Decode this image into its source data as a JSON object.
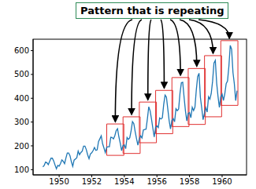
{
  "chart_data": {
    "type": "line",
    "annotations": [
      "Pattern that is repeating"
    ],
    "color": "#1f77b4",
    "grid": false,
    "x": [
      1949,
      1949.083,
      1949.167,
      1949.25,
      1949.333,
      1949.417,
      1949.5,
      1949.583,
      1949.667,
      1949.75,
      1949.833,
      1949.917,
      1950,
      1950.083,
      1950.167,
      1950.25,
      1950.333,
      1950.417,
      1950.5,
      1950.583,
      1950.667,
      1950.75,
      1950.833,
      1950.917,
      1951,
      1951.083,
      1951.167,
      1951.25,
      1951.333,
      1951.417,
      1951.5,
      1951.583,
      1951.667,
      1951.75,
      1951.833,
      1951.917,
      1952,
      1952.083,
      1952.167,
      1952.25,
      1952.333,
      1952.417,
      1952.5,
      1952.583,
      1952.667,
      1952.75,
      1952.833,
      1952.917,
      1953,
      1953.083,
      1953.167,
      1953.25,
      1953.333,
      1953.417,
      1953.5,
      1953.583,
      1953.667,
      1953.75,
      1953.833,
      1953.917,
      1954,
      1954.083,
      1954.167,
      1954.25,
      1954.333,
      1954.417,
      1954.5,
      1954.583,
      1954.667,
      1954.75,
      1954.833,
      1954.917,
      1955,
      1955.083,
      1955.167,
      1955.25,
      1955.333,
      1955.417,
      1955.5,
      1955.583,
      1955.667,
      1955.75,
      1955.833,
      1955.917,
      1956,
      1956.083,
      1956.167,
      1956.25,
      1956.333,
      1956.417,
      1956.5,
      1956.583,
      1956.667,
      1956.75,
      1956.833,
      1956.917,
      1957,
      1957.083,
      1957.167,
      1957.25,
      1957.333,
      1957.417,
      1957.5,
      1957.583,
      1957.667,
      1957.75,
      1957.833,
      1957.917,
      1958,
      1958.083,
      1958.167,
      1958.25,
      1958.333,
      1958.417,
      1958.5,
      1958.583,
      1958.667,
      1958.75,
      1958.833,
      1958.917,
      1959,
      1959.083,
      1959.167,
      1959.25,
      1959.333,
      1959.417,
      1959.5,
      1959.583,
      1959.667,
      1959.75,
      1959.833,
      1959.917,
      1960,
      1960.083,
      1960.167,
      1960.25,
      1960.333,
      1960.417,
      1960.5,
      1960.583,
      1960.667,
      1960.75,
      1960.833,
      1960.917
    ],
    "values": [
      112,
      118,
      132,
      129,
      121,
      135,
      148,
      148,
      136,
      119,
      104,
      118,
      115,
      126,
      141,
      135,
      125,
      149,
      170,
      170,
      158,
      133,
      114,
      140,
      145,
      150,
      178,
      163,
      172,
      178,
      199,
      199,
      184,
      162,
      146,
      166,
      171,
      180,
      193,
      181,
      183,
      218,
      230,
      242,
      209,
      191,
      172,
      194,
      196,
      196,
      236,
      235,
      229,
      243,
      264,
      272,
      237,
      211,
      180,
      201,
      204,
      188,
      235,
      227,
      234,
      264,
      302,
      293,
      259,
      229,
      203,
      229,
      242,
      233,
      267,
      269,
      270,
      315,
      364,
      347,
      312,
      274,
      237,
      278,
      284,
      277,
      317,
      313,
      318,
      374,
      413,
      405,
      355,
      306,
      271,
      306,
      315,
      301,
      356,
      348,
      355,
      422,
      465,
      467,
      404,
      347,
      305,
      336,
      340,
      318,
      362,
      348,
      363,
      435,
      491,
      505,
      404,
      359,
      310,
      337,
      360,
      342,
      406,
      396,
      420,
      472,
      548,
      559,
      463,
      407,
      362,
      405,
      417,
      391,
      419,
      461,
      472,
      535,
      622,
      606,
      508,
      461,
      390,
      432
    ],
    "xlim": [
      1948.4,
      1961.5
    ],
    "xticks": [
      1950,
      1952,
      1954,
      1956,
      1958,
      1960
    ],
    "ylim": [
      78,
      648
    ],
    "yticks": [
      100,
      200,
      300,
      400,
      500,
      600
    ]
  }
}
